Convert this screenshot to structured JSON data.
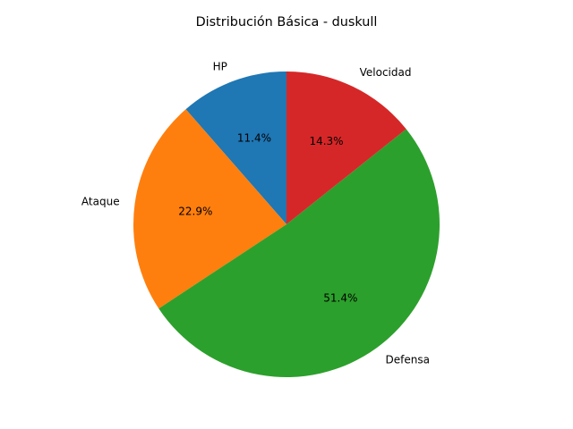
{
  "chart_data": {
    "type": "pie",
    "title": "Distribución Básica - duskull",
    "start_angle_deg": 90,
    "direction": "counterclockwise",
    "slices": [
      {
        "label": "HP",
        "value": 20,
        "percent_label": "11.4%",
        "color": "#1f77b4"
      },
      {
        "label": "Ataque",
        "value": 40,
        "percent_label": "22.9%",
        "color": "#ff7f0e"
      },
      {
        "label": "Defensa",
        "value": 90,
        "percent_label": "51.4%",
        "color": "#2ca02c"
      },
      {
        "label": "Velocidad",
        "value": 25,
        "percent_label": "14.3%",
        "color": "#d62728"
      }
    ]
  }
}
